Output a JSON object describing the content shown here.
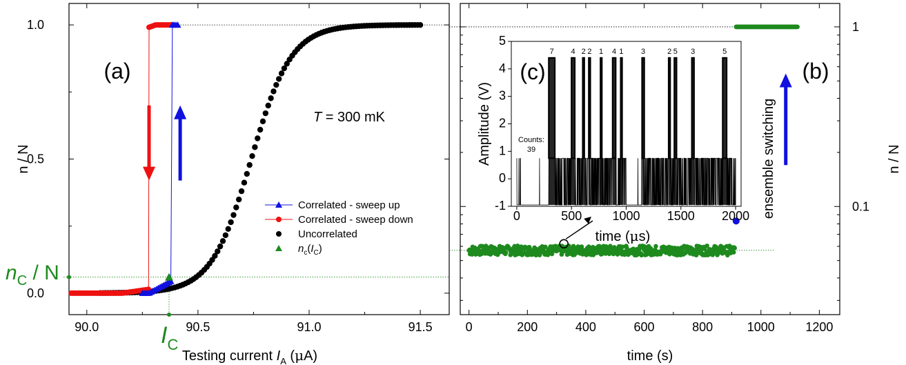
{
  "colors": {
    "blue": "#1010e0",
    "red": "#ee1111",
    "black": "#000000",
    "green": "#1e8a1e"
  },
  "text": {
    "panel_a": "(a)",
    "panel_b": "(b)",
    "panel_c": "(c)",
    "temperature_T": "T",
    "temperature_rest": " = 300 mK",
    "ensemble_switching": "ensemble switching",
    "nc_label_n": "n",
    "nc_label_sub": "C",
    "nc_label_rest": " / N",
    "ic_label_I": "I",
    "ic_label_sub": "C",
    "counts_label": "Counts:",
    "counts_value": "39"
  },
  "chart_data": [
    {
      "id": "a",
      "type": "scatter",
      "xlabel": "Testing current I_A (µA)",
      "xlabel_parts": [
        "Testing current ",
        "I",
        "A",
        " (",
        "μ",
        "A)"
      ],
      "ylabel": "n / N",
      "xlim": [
        89.92,
        91.63
      ],
      "ylim": [
        -0.08,
        1.08
      ],
      "xticks": [
        90.0,
        90.5,
        91.0,
        91.5
      ],
      "xtick_labels": [
        "90.0",
        "90.5",
        "91.0",
        "91.5"
      ],
      "yticks": [
        0.0,
        0.5,
        1.0
      ],
      "ytick_labels": [
        "0.0",
        "0.5",
        "1.0"
      ],
      "legend_position": "center-right",
      "legend": [
        "Correlated - sweep up",
        "Correlated - sweep down",
        "Uncorrelated",
        "n_c(I_C)"
      ],
      "legend_parts": {
        "nc_n": "n",
        "nc_sub": "c",
        "nc_paren_open": "(",
        "nc_I": "I",
        "nc_Isub": "C",
        "nc_paren_close": ")"
      },
      "uncorrelated_curve": {
        "center": 90.74,
        "width": 0.09,
        "x_start": 90.06,
        "x_end": 91.5,
        "step": 0.012
      },
      "sweep_up": {
        "x_start": 89.93,
        "x_jump": 90.38,
        "x_end": 90.41,
        "y_low": 0.0,
        "y_high": 1.0
      },
      "sweep_down": {
        "x_start": 89.93,
        "x_jump": 90.28,
        "x_end": 90.39,
        "y_low": 0.0,
        "y_high": 1.0
      },
      "nc_point": {
        "x": 90.37,
        "y": 0.06
      },
      "nc_value": 0.06,
      "ic_value": 90.37,
      "reference_line_y": 1.0,
      "arrows": [
        {
          "color": "red",
          "x": 90.28,
          "y_from": 0.7,
          "y_to": 0.42,
          "direction": "down"
        },
        {
          "color": "blue",
          "x": 90.42,
          "y_from": 0.42,
          "y_to": 0.7,
          "direction": "up"
        }
      ]
    },
    {
      "id": "b",
      "type": "scatter",
      "xlabel": "time (s)",
      "ylabel": "n / N",
      "ylabel_side": "right",
      "xlim": [
        -30,
        1270
      ],
      "y_scale": "log",
      "ylim": [
        0.025,
        1.35
      ],
      "xticks": [
        0,
        200,
        400,
        600,
        800,
        1000,
        1200
      ],
      "xtick_labels": [
        "0",
        "200",
        "400",
        "600",
        "800",
        "1000",
        "1200"
      ],
      "yticks": [
        0.1,
        1
      ],
      "ytick_labels": [
        "0.1",
        "1"
      ],
      "noisy_series": {
        "x_start": 0,
        "x_end": 910,
        "mean": 0.057,
        "relative_spread": 0.06,
        "color": "green"
      },
      "high_series": {
        "x_start": 915,
        "x_end": 1125,
        "y": 1.0,
        "color": "green"
      },
      "blue_point": {
        "x": 915,
        "y": 0.083
      },
      "circled_point": {
        "x": 325,
        "y": 0.062
      },
      "reference_line_y": 0.057,
      "arrow": {
        "color": "blue",
        "x": 1085,
        "y_from": 0.17,
        "y_to": 0.55,
        "direction": "up"
      }
    },
    {
      "id": "c",
      "type": "line",
      "xlabel": "time (µs)",
      "xlabel_parts": [
        "time (",
        "μ",
        "s)"
      ],
      "ylabel": "Amplitude (V)",
      "xlim": [
        -50,
        2050
      ],
      "ylim": [
        -1,
        5
      ],
      "xticks": [
        0,
        500,
        1000,
        1500,
        2000
      ],
      "xtick_labels": [
        "0",
        "500",
        "1000",
        "1500",
        "2000"
      ],
      "yticks": [
        -1,
        0,
        1,
        2,
        3,
        4,
        5
      ],
      "ytick_labels": [
        "-1",
        "0",
        "1",
        "2",
        "3",
        "4",
        "5"
      ],
      "baseline_low": -0.95,
      "baseline_high": 0.75,
      "trace_start": 0,
      "trace_end": 2000,
      "pulse_height": 4.4,
      "pulses": [
        {
          "t": 320,
          "w": 55,
          "count": "7"
        },
        {
          "t": 515,
          "w": 30,
          "count": "4"
        },
        {
          "t": 610,
          "w": 14,
          "count": "2"
        },
        {
          "t": 665,
          "w": 14,
          "count": "2"
        },
        {
          "t": 770,
          "w": 10,
          "count": "1"
        },
        {
          "t": 890,
          "w": 28,
          "count": "4"
        },
        {
          "t": 955,
          "w": 10,
          "count": "1"
        },
        {
          "t": 1155,
          "w": 20,
          "count": "3"
        },
        {
          "t": 1395,
          "w": 14,
          "count": "2"
        },
        {
          "t": 1450,
          "w": 20,
          "count": "5"
        },
        {
          "t": 1610,
          "w": 20,
          "count": "3"
        },
        {
          "t": 1900,
          "w": 36,
          "count": "5"
        }
      ]
    }
  ]
}
